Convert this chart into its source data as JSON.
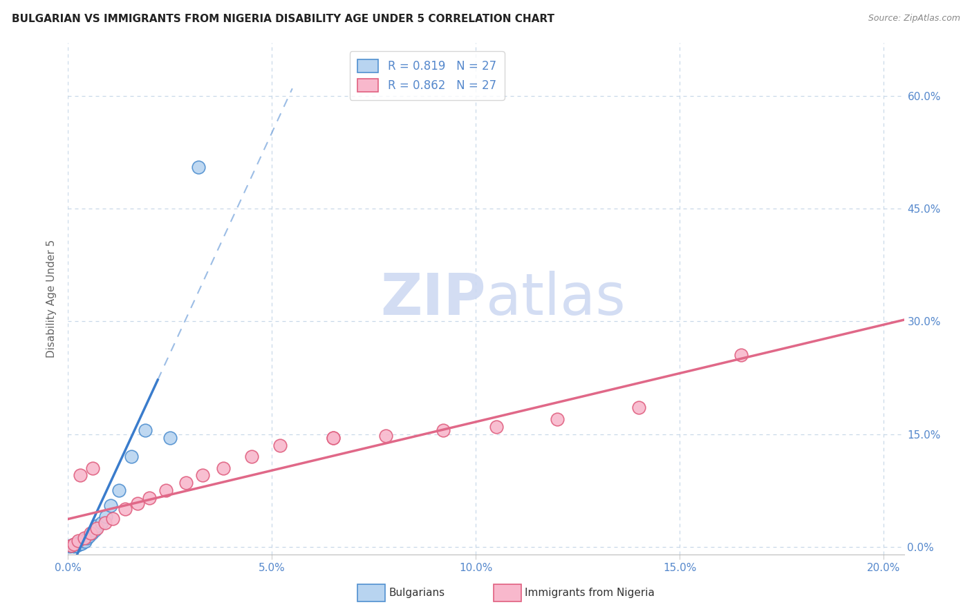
{
  "title": "BULGARIAN VS IMMIGRANTS FROM NIGERIA DISABILITY AGE UNDER 5 CORRELATION CHART",
  "source": "Source: ZipAtlas.com",
  "ylabel": "Disability Age Under 5",
  "xlabel_ticks": [
    "0.0%",
    "5.0%",
    "10.0%",
    "15.0%",
    "20.0%"
  ],
  "xlabel_vals": [
    0.0,
    5.0,
    10.0,
    15.0,
    20.0
  ],
  "ylabel_ticks": [
    "0.0%",
    "15.0%",
    "30.0%",
    "45.0%",
    "60.0%"
  ],
  "ylabel_vals": [
    0.0,
    15.0,
    30.0,
    45.0,
    60.0
  ],
  "xlim": [
    0.0,
    20.5
  ],
  "ylim": [
    -1.0,
    67.0
  ],
  "r_bulgarian": 0.819,
  "n_bulgarian": 27,
  "r_nigeria": 0.862,
  "n_nigeria": 27,
  "bulgarian_scatter_face": "#b8d4f0",
  "bulgarian_scatter_edge": "#5090d0",
  "nigeria_scatter_face": "#f8b8cc",
  "nigeria_scatter_edge": "#e06080",
  "bulgarian_line_color": "#3a7ccc",
  "nigeria_line_color": "#e06888",
  "watermark_color": "#ccd8f2",
  "grid_color": "#c8d8e8",
  "tick_color": "#5588cc",
  "title_color": "#222222",
  "source_color": "#888888",
  "bg_color": "#ffffff",
  "legend_label_1": "Bulgarians",
  "legend_label_2": "Immigrants from Nigeria",
  "bulgarians_x": [
    0.05,
    0.07,
    0.1,
    0.12,
    0.14,
    0.17,
    0.2,
    0.22,
    0.25,
    0.28,
    0.3,
    0.33,
    0.38,
    0.42,
    0.47,
    0.52,
    0.58,
    0.65,
    0.73,
    0.82,
    0.92,
    1.05,
    1.25,
    1.55,
    1.9,
    2.5,
    3.2
  ],
  "bulgarians_y": [
    0.1,
    0.15,
    0.2,
    0.25,
    0.1,
    0.3,
    0.4,
    0.2,
    0.5,
    0.35,
    0.6,
    0.45,
    0.8,
    0.7,
    1.2,
    1.5,
    1.8,
    2.2,
    2.8,
    3.2,
    4.0,
    5.5,
    7.5,
    12.0,
    15.5,
    14.5,
    50.5
  ],
  "nigeria_x": [
    0.08,
    0.15,
    0.25,
    0.4,
    0.55,
    0.7,
    0.9,
    1.1,
    1.4,
    1.7,
    2.0,
    2.4,
    2.9,
    3.3,
    3.8,
    4.5,
    5.2,
    6.5,
    7.8,
    9.2,
    10.5,
    12.0,
    14.0,
    16.5,
    6.5,
    0.3,
    0.6
  ],
  "nigeria_y": [
    0.15,
    0.4,
    0.8,
    1.2,
    1.8,
    2.5,
    3.2,
    3.8,
    5.0,
    5.8,
    6.5,
    7.5,
    8.5,
    9.5,
    10.5,
    12.0,
    13.5,
    14.5,
    14.8,
    15.5,
    16.0,
    17.0,
    18.5,
    25.5,
    14.5,
    9.5,
    10.5
  ]
}
